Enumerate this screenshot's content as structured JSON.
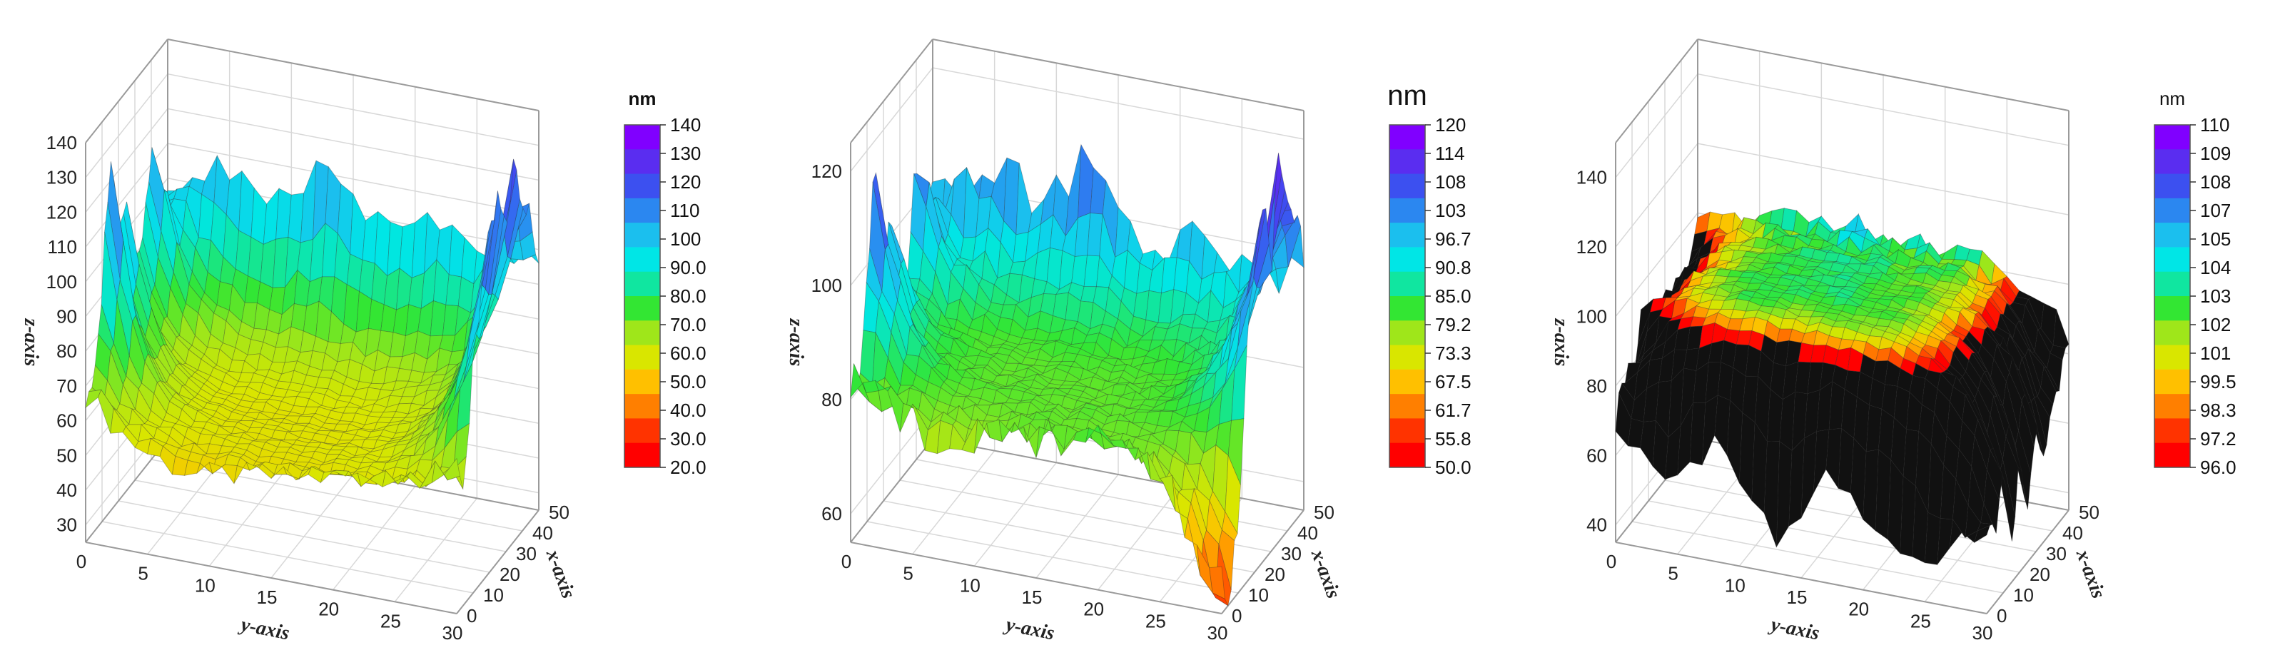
{
  "chart_data": [
    {
      "type": "surface",
      "unit": "nm",
      "xlabel": "y-axis",
      "ylabel": "x-axis",
      "zlabel": "z-axis",
      "x_ticks": [
        "0",
        "5",
        "10",
        "15",
        "20",
        "25",
        "30"
      ],
      "y_ticks": [
        "0",
        "10",
        "20",
        "30",
        "40",
        "50"
      ],
      "z_ticks": [
        "30",
        "40",
        "50",
        "60",
        "70",
        "80",
        "90",
        "100",
        "110",
        "120",
        "130",
        "140"
      ],
      "xlim": [
        0,
        30
      ],
      "ylim": [
        0,
        50
      ],
      "zlim": [
        25,
        140
      ],
      "colorbar": {
        "min": 20,
        "max": 140,
        "ticks": [
          "140",
          "130",
          "120",
          "110",
          "100",
          "90.0",
          "80.0",
          "70.0",
          "60.0",
          "50.0",
          "40.0",
          "30.0",
          "20.0"
        ],
        "colors": [
          "#8000ff",
          "#5a2df0",
          "#3c50f0",
          "#2b87f0",
          "#1bbfee",
          "#00e6e6",
          "#10e6a0",
          "#33e633",
          "#9fe61a",
          "#d9e600",
          "#ffc000",
          "#ff7f00",
          "#ff3300",
          "#ff0000"
        ]
      },
      "surface": {
        "plateau": 55,
        "left_edge": [
          80,
          75,
          95,
          130,
          100,
          110,
          85,
          90,
          118,
          95,
          100
        ],
        "right_edge": [
          70,
          60,
          95,
          110,
          125,
          130,
          118,
          140,
          120,
          128,
          115
        ],
        "front_edge": [
          55,
          52,
          50,
          53,
          55,
          58,
          60,
          62
        ],
        "back_edge": [
          95,
          108,
          100,
          112,
          98,
          102,
          90,
          80
        ]
      }
    },
    {
      "type": "surface",
      "unit": "nm",
      "xlabel": "y-axis",
      "ylabel": "x-axis",
      "zlabel": "z-axis",
      "x_ticks": [
        "0",
        "5",
        "10",
        "15",
        "20",
        "25",
        "30"
      ],
      "y_ticks": [
        "0",
        "10",
        "20",
        "30",
        "40",
        "50"
      ],
      "z_ticks": [
        "60",
        "80",
        "100",
        "120"
      ],
      "xlim": [
        0,
        30
      ],
      "ylim": [
        0,
        50
      ],
      "zlim": [
        55,
        125
      ],
      "colorbar": {
        "min": 50,
        "max": 120,
        "ticks": [
          "120",
          "114",
          "108",
          "103",
          "96.7",
          "90.8",
          "85.0",
          "79.2",
          "73.3",
          "67.5",
          "61.7",
          "55.8",
          "50.0"
        ],
        "colors": [
          "#8000ff",
          "#5a2df0",
          "#3c50f0",
          "#2b87f0",
          "#1bbfee",
          "#00e6e6",
          "#10e6a0",
          "#33e633",
          "#9fe61a",
          "#d9e600",
          "#ffc000",
          "#ff7f00",
          "#ff3300",
          "#ff0000"
        ]
      },
      "surface": {
        "plateau": 80,
        "left_edge": [
          85,
          80,
          100,
          120,
          95,
          105,
          88,
          90,
          110,
          92,
          95
        ],
        "right_edge": [
          60,
          55,
          70,
          95,
          110,
          120,
          105,
          125,
          115,
          120,
          110
        ],
        "front_edge": [
          80,
          78,
          75,
          79,
          80,
          82,
          78,
          60
        ],
        "back_edge": [
          98,
          108,
          100,
          110,
          95,
          100,
          92,
          85
        ]
      }
    },
    {
      "type": "surface",
      "unit": "nm",
      "xlabel": "y-axis",
      "ylabel": "x-axis",
      "zlabel": "z-axis",
      "x_ticks": [
        "0",
        "5",
        "10",
        "15",
        "20",
        "25",
        "30"
      ],
      "y_ticks": [
        "0",
        "10",
        "20",
        "30",
        "40",
        "50"
      ],
      "z_ticks": [
        "40",
        "60",
        "80",
        "100",
        "120",
        "140"
      ],
      "xlim": [
        0,
        30
      ],
      "ylim": [
        0,
        50
      ],
      "zlim": [
        35,
        150
      ],
      "colorbar": {
        "min": 96,
        "max": 110,
        "ticks": [
          "110",
          "109",
          "108",
          "107",
          "105",
          "104",
          "103",
          "102",
          "101",
          "99.5",
          "98.3",
          "97.2",
          "96.0"
        ],
        "colors": [
          "#8000ff",
          "#5a2df0",
          "#3c50f0",
          "#2b87f0",
          "#1bbfee",
          "#00e6e6",
          "#10e6a0",
          "#33e633",
          "#9fe61a",
          "#d9e600",
          "#ffc000",
          "#ff7f00",
          "#ff3300",
          "#ff0000"
        ]
      },
      "surface": {
        "plateau": 103,
        "left_edge": [
          80,
          85,
          78,
          90,
          82,
          88,
          75,
          86,
          80,
          84,
          90
        ],
        "right_edge": [
          60,
          55,
          70,
          45,
          65,
          50,
          72,
          58,
          66,
          62,
          70
        ],
        "front_edge": [
          60,
          50,
          70,
          45,
          65,
          55,
          40,
          60
        ],
        "back_edge": [
          103,
          104,
          103,
          105,
          103,
          104,
          103,
          103
        ]
      }
    }
  ]
}
